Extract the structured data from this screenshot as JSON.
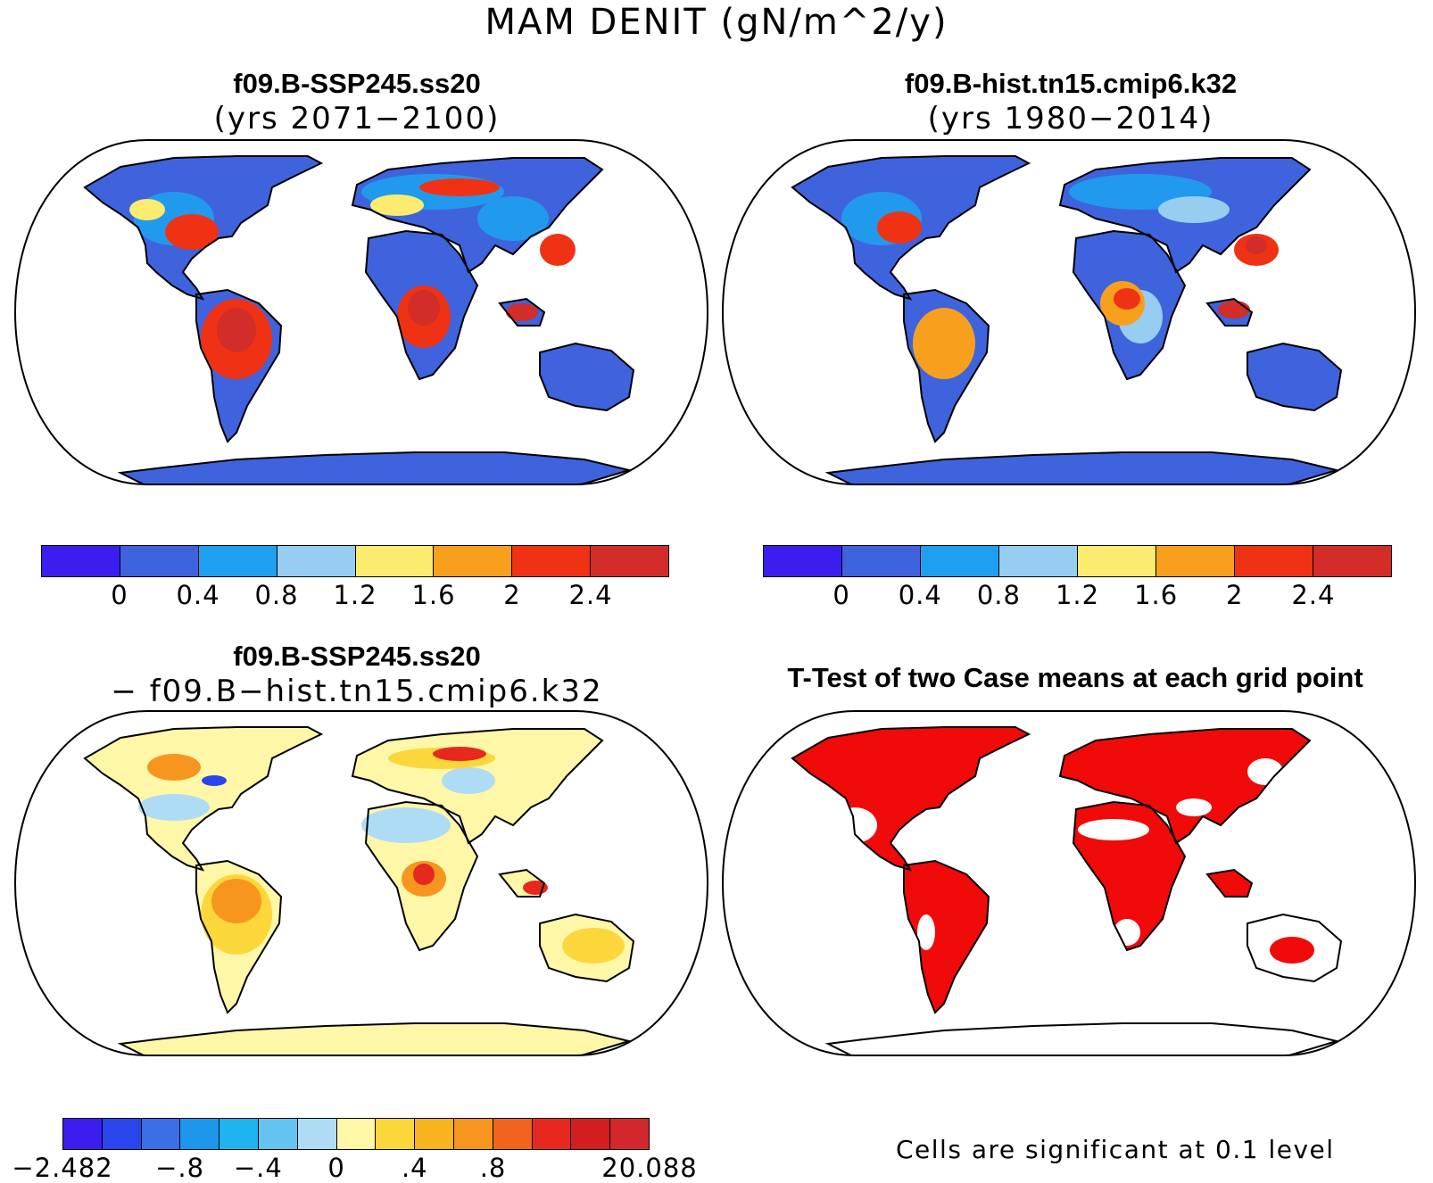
{
  "title": "MAM DENIT (gN/m^2/y)",
  "panels": [
    {
      "id": "future",
      "title": "f09.B-SSP245.ss20",
      "subtitle": "(yrs 2071−2100)"
    },
    {
      "id": "hist",
      "title": "f09.B-hist.tn15.cmip6.k32",
      "subtitle": "(yrs 1980−2014)"
    },
    {
      "id": "diff",
      "title": "f09.B-SSP245.ss20",
      "subtitle": "− f09.B−hist.tn15.cmip6.k32"
    },
    {
      "id": "ttest",
      "title": "T-Test of two Case means at each grid point",
      "subtitle": ""
    }
  ],
  "colorbar_abs": {
    "colors": [
      "#3a1ef0",
      "#3f63dc",
      "#1ea0f0",
      "#96cdf0",
      "#fbeb6e",
      "#f8a01e",
      "#f03214",
      "#d22d28"
    ],
    "ticks": [
      "0",
      "0.4",
      "0.8",
      "1.2",
      "1.6",
      "2",
      "2.4"
    ]
  },
  "colorbar_diff": {
    "colors": [
      "#3a1ef0",
      "#2846eb",
      "#3c6ee6",
      "#1e96eb",
      "#1eb4f0",
      "#64c3f0",
      "#afdcf5",
      "#fff7a8",
      "#fcd73c",
      "#f8b41e",
      "#f6961e",
      "#f0641e",
      "#e6281e",
      "#d21e1e",
      "#d2282d"
    ],
    "ticks": [
      "−2.482",
      "−.8",
      "−.4",
      "0",
      ".4",
      ".8",
      "20.088"
    ]
  },
  "significance_color": "#f00a0a",
  "note": "Cells are significant at 0.1 level"
}
